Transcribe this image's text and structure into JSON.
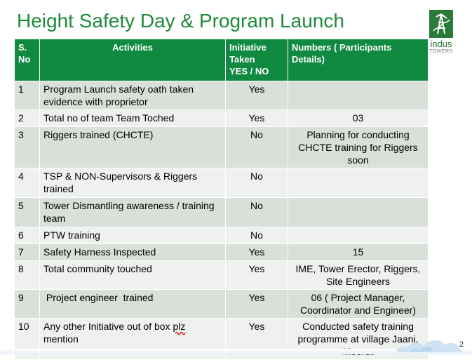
{
  "title": "Height Safety Day & Program Launch",
  "logo": {
    "name": "indus",
    "sub": "TOWERS",
    "icon": "indus-tower-logo-icon",
    "color": "#2a7a3a"
  },
  "colors": {
    "header_bg": "#0f8a40",
    "title": "#1f8a3b",
    "row_odd": "#d9dfd9",
    "row_even": "#eef1ee"
  },
  "table": {
    "headers": {
      "no_line1": "S.",
      "no_line2": "No",
      "activity": "Activities",
      "initiative_line1": "Initiative",
      "initiative_line2": "Taken",
      "initiative_line3": "YES / NO",
      "numbers_line1": "Numbers ( Participants",
      "numbers_line2": "Details)"
    },
    "rows": [
      {
        "no": "1",
        "activity": "Program Launch safety oath taken evidence with proprietor",
        "initiative": "Yes",
        "numbers": ""
      },
      {
        "no": "2",
        "activity": "Total no of team Team Toched",
        "initiative": "Yes",
        "numbers": "03"
      },
      {
        "no": "3",
        "activity": "Riggers trained (CHCTE)",
        "initiative": "No",
        "numbers": "Planning for conducting CHCTE training for Riggers soon"
      },
      {
        "no": "4",
        "activity": "TSP & NON-Supervisors &  Riggers trained",
        "initiative": "No",
        "numbers": ""
      },
      {
        "no": "5",
        "activity": "Tower Dismantling awareness / training team",
        "initiative": "No",
        "numbers": ""
      },
      {
        "no": "6",
        "activity": "PTW training",
        "initiative": "No",
        "numbers": ""
      },
      {
        "no": "7",
        "activity": "Safety Harness Inspected",
        "initiative": "Yes",
        "numbers": "15"
      },
      {
        "no": "8",
        "activity": "Total community touched",
        "initiative": "Yes",
        "numbers": "IME, Tower Erector, Riggers, Site Engineers"
      },
      {
        "no": "9",
        "activity": " Project engineer  trained",
        "initiative": "Yes",
        "numbers": "06 ( Project Manager, Coordinator and Engineer)"
      },
      {
        "no": "10",
        "activity_main": "Any other Initiative out of box ",
        "activity_flag": "plz",
        "activity_tail": "mention",
        "initiative": "Yes",
        "numbers": "Conducted safety training programme at village Jaani, Meerut"
      }
    ]
  },
  "page_number": "2"
}
